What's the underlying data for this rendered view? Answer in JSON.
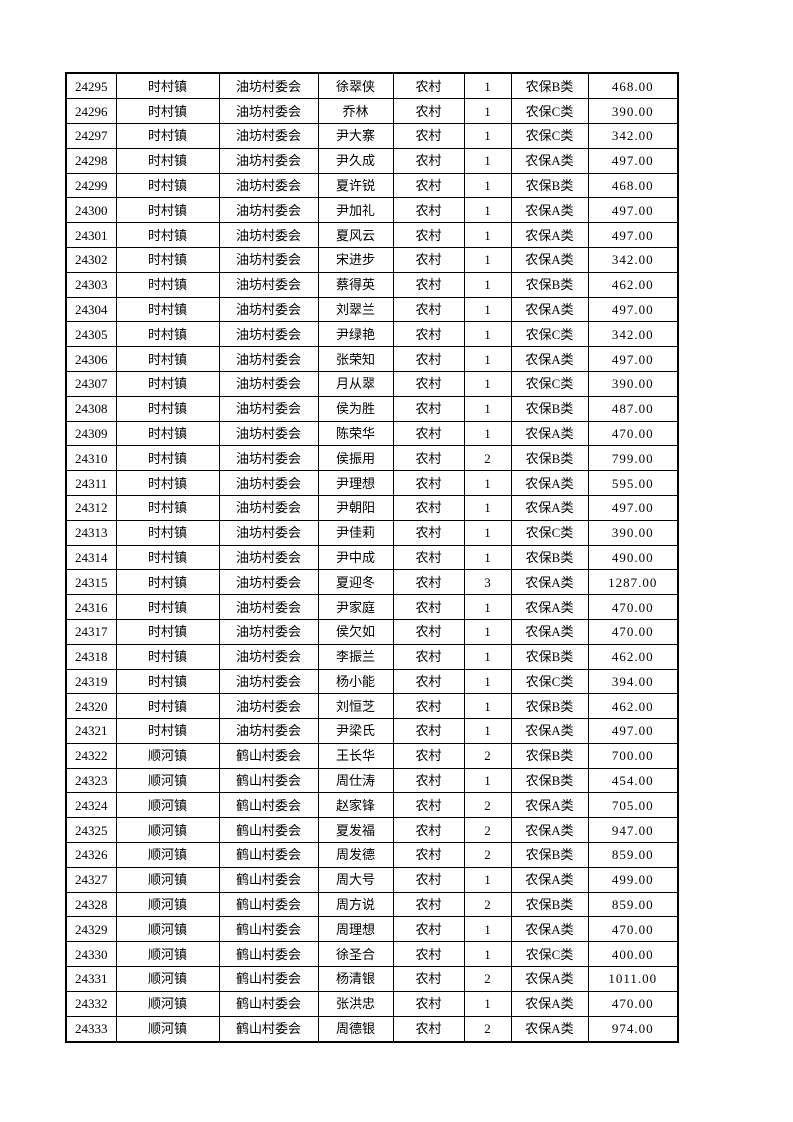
{
  "table": {
    "fields": [
      "id",
      "town",
      "village",
      "person",
      "residence",
      "count",
      "category",
      "amount"
    ],
    "rows": [
      {
        "id": "24295",
        "town": "时村镇",
        "village": "油坊村委会",
        "person": "徐翠侠",
        "residence": "农村",
        "count": "1",
        "category": "农保B类",
        "amount": "468.00"
      },
      {
        "id": "24296",
        "town": "时村镇",
        "village": "油坊村委会",
        "person": "乔林",
        "residence": "农村",
        "count": "1",
        "category": "农保C类",
        "amount": "390.00"
      },
      {
        "id": "24297",
        "town": "时村镇",
        "village": "油坊村委会",
        "person": "尹大寨",
        "residence": "农村",
        "count": "1",
        "category": "农保C类",
        "amount": "342.00"
      },
      {
        "id": "24298",
        "town": "时村镇",
        "village": "油坊村委会",
        "person": "尹久成",
        "residence": "农村",
        "count": "1",
        "category": "农保A类",
        "amount": "497.00"
      },
      {
        "id": "24299",
        "town": "时村镇",
        "village": "油坊村委会",
        "person": "夏许锐",
        "residence": "农村",
        "count": "1",
        "category": "农保B类",
        "amount": "468.00"
      },
      {
        "id": "24300",
        "town": "时村镇",
        "village": "油坊村委会",
        "person": "尹加礼",
        "residence": "农村",
        "count": "1",
        "category": "农保A类",
        "amount": "497.00"
      },
      {
        "id": "24301",
        "town": "时村镇",
        "village": "油坊村委会",
        "person": "夏风云",
        "residence": "农村",
        "count": "1",
        "category": "农保A类",
        "amount": "497.00"
      },
      {
        "id": "24302",
        "town": "时村镇",
        "village": "油坊村委会",
        "person": "宋进步",
        "residence": "农村",
        "count": "1",
        "category": "农保A类",
        "amount": "342.00"
      },
      {
        "id": "24303",
        "town": "时村镇",
        "village": "油坊村委会",
        "person": "蔡得英",
        "residence": "农村",
        "count": "1",
        "category": "农保B类",
        "amount": "462.00"
      },
      {
        "id": "24304",
        "town": "时村镇",
        "village": "油坊村委会",
        "person": "刘翠兰",
        "residence": "农村",
        "count": "1",
        "category": "农保A类",
        "amount": "497.00"
      },
      {
        "id": "24305",
        "town": "时村镇",
        "village": "油坊村委会",
        "person": "尹绿艳",
        "residence": "农村",
        "count": "1",
        "category": "农保C类",
        "amount": "342.00"
      },
      {
        "id": "24306",
        "town": "时村镇",
        "village": "油坊村委会",
        "person": "张荣知",
        "residence": "农村",
        "count": "1",
        "category": "农保A类",
        "amount": "497.00"
      },
      {
        "id": "24307",
        "town": "时村镇",
        "village": "油坊村委会",
        "person": "月从翠",
        "residence": "农村",
        "count": "1",
        "category": "农保C类",
        "amount": "390.00"
      },
      {
        "id": "24308",
        "town": "时村镇",
        "village": "油坊村委会",
        "person": "侯为胜",
        "residence": "农村",
        "count": "1",
        "category": "农保B类",
        "amount": "487.00"
      },
      {
        "id": "24309",
        "town": "时村镇",
        "village": "油坊村委会",
        "person": "陈荣华",
        "residence": "农村",
        "count": "1",
        "category": "农保A类",
        "amount": "470.00"
      },
      {
        "id": "24310",
        "town": "时村镇",
        "village": "油坊村委会",
        "person": "侯振用",
        "residence": "农村",
        "count": "2",
        "category": "农保B类",
        "amount": "799.00"
      },
      {
        "id": "24311",
        "town": "时村镇",
        "village": "油坊村委会",
        "person": "尹理想",
        "residence": "农村",
        "count": "1",
        "category": "农保A类",
        "amount": "595.00"
      },
      {
        "id": "24312",
        "town": "时村镇",
        "village": "油坊村委会",
        "person": "尹朝阳",
        "residence": "农村",
        "count": "1",
        "category": "农保A类",
        "amount": "497.00"
      },
      {
        "id": "24313",
        "town": "时村镇",
        "village": "油坊村委会",
        "person": "尹佳莉",
        "residence": "农村",
        "count": "1",
        "category": "农保C类",
        "amount": "390.00"
      },
      {
        "id": "24314",
        "town": "时村镇",
        "village": "油坊村委会",
        "person": "尹中成",
        "residence": "农村",
        "count": "1",
        "category": "农保B类",
        "amount": "490.00"
      },
      {
        "id": "24315",
        "town": "时村镇",
        "village": "油坊村委会",
        "person": "夏迎冬",
        "residence": "农村",
        "count": "3",
        "category": "农保A类",
        "amount": "1287.00"
      },
      {
        "id": "24316",
        "town": "时村镇",
        "village": "油坊村委会",
        "person": "尹家庭",
        "residence": "农村",
        "count": "1",
        "category": "农保A类",
        "amount": "470.00"
      },
      {
        "id": "24317",
        "town": "时村镇",
        "village": "油坊村委会",
        "person": "侯欠如",
        "residence": "农村",
        "count": "1",
        "category": "农保A类",
        "amount": "470.00"
      },
      {
        "id": "24318",
        "town": "时村镇",
        "village": "油坊村委会",
        "person": "李振兰",
        "residence": "农村",
        "count": "1",
        "category": "农保B类",
        "amount": "462.00"
      },
      {
        "id": "24319",
        "town": "时村镇",
        "village": "油坊村委会",
        "person": "杨小能",
        "residence": "农村",
        "count": "1",
        "category": "农保C类",
        "amount": "394.00"
      },
      {
        "id": "24320",
        "town": "时村镇",
        "village": "油坊村委会",
        "person": "刘恒芝",
        "residence": "农村",
        "count": "1",
        "category": "农保B类",
        "amount": "462.00"
      },
      {
        "id": "24321",
        "town": "时村镇",
        "village": "油坊村委会",
        "person": "尹梁氏",
        "residence": "农村",
        "count": "1",
        "category": "农保A类",
        "amount": "497.00"
      },
      {
        "id": "24322",
        "town": "顺河镇",
        "village": "鹤山村委会",
        "person": "王长华",
        "residence": "农村",
        "count": "2",
        "category": "农保B类",
        "amount": "700.00"
      },
      {
        "id": "24323",
        "town": "顺河镇",
        "village": "鹤山村委会",
        "person": "周仕涛",
        "residence": "农村",
        "count": "1",
        "category": "农保B类",
        "amount": "454.00"
      },
      {
        "id": "24324",
        "town": "顺河镇",
        "village": "鹤山村委会",
        "person": "赵家锋",
        "residence": "农村",
        "count": "2",
        "category": "农保A类",
        "amount": "705.00"
      },
      {
        "id": "24325",
        "town": "顺河镇",
        "village": "鹤山村委会",
        "person": "夏发福",
        "residence": "农村",
        "count": "2",
        "category": "农保A类",
        "amount": "947.00"
      },
      {
        "id": "24326",
        "town": "顺河镇",
        "village": "鹤山村委会",
        "person": "周发德",
        "residence": "农村",
        "count": "2",
        "category": "农保B类",
        "amount": "859.00"
      },
      {
        "id": "24327",
        "town": "顺河镇",
        "village": "鹤山村委会",
        "person": "周大号",
        "residence": "农村",
        "count": "1",
        "category": "农保A类",
        "amount": "499.00"
      },
      {
        "id": "24328",
        "town": "顺河镇",
        "village": "鹤山村委会",
        "person": "周方说",
        "residence": "农村",
        "count": "2",
        "category": "农保B类",
        "amount": "859.00"
      },
      {
        "id": "24329",
        "town": "顺河镇",
        "village": "鹤山村委会",
        "person": "周理想",
        "residence": "农村",
        "count": "1",
        "category": "农保A类",
        "amount": "470.00"
      },
      {
        "id": "24330",
        "town": "顺河镇",
        "village": "鹤山村委会",
        "person": "徐圣合",
        "residence": "农村",
        "count": "1",
        "category": "农保C类",
        "amount": "400.00"
      },
      {
        "id": "24331",
        "town": "顺河镇",
        "village": "鹤山村委会",
        "person": "杨清银",
        "residence": "农村",
        "count": "2",
        "category": "农保A类",
        "amount": "1011.00"
      },
      {
        "id": "24332",
        "town": "顺河镇",
        "village": "鹤山村委会",
        "person": "张洪忠",
        "residence": "农村",
        "count": "1",
        "category": "农保A类",
        "amount": "470.00"
      },
      {
        "id": "24333",
        "town": "顺河镇",
        "village": "鹤山村委会",
        "person": "周德银",
        "residence": "农村",
        "count": "2",
        "category": "农保A类",
        "amount": "974.00"
      }
    ]
  }
}
